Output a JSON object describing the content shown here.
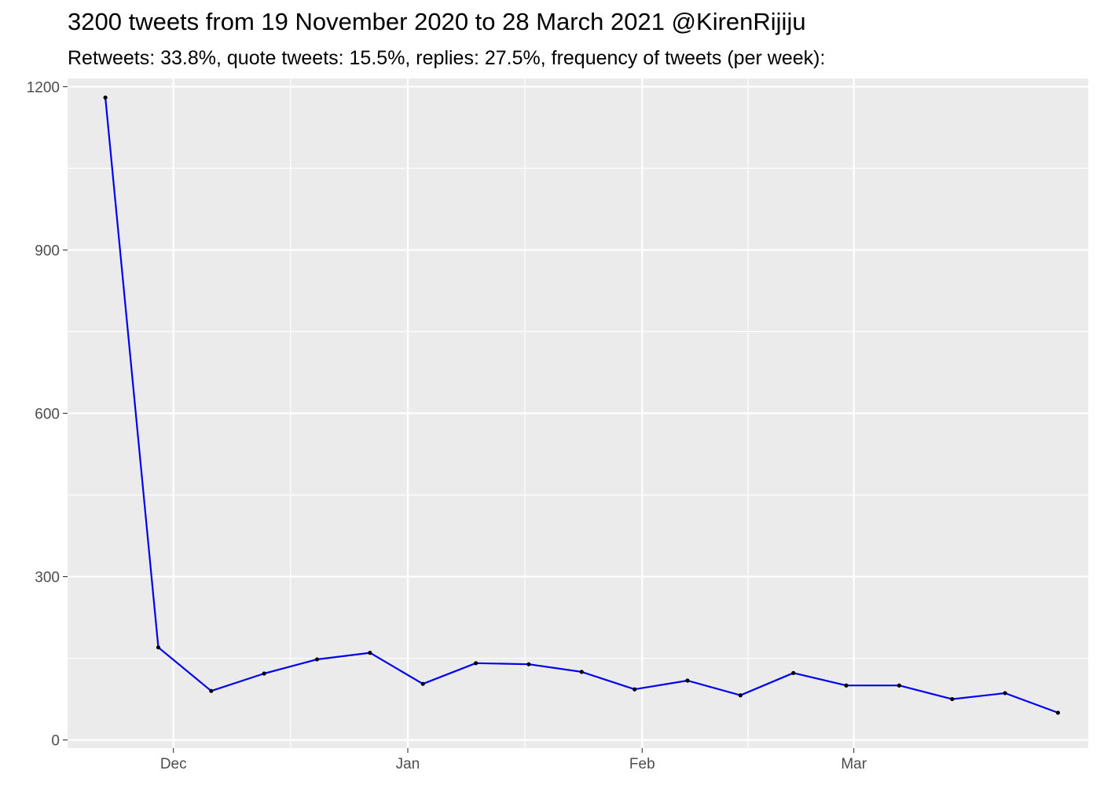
{
  "chart_data": {
    "type": "line",
    "title": "3200 tweets from 19 November 2020 to 28 March 2021 @KirenRijiju",
    "subtitle": "Retweets: 33.8%, quote tweets: 15.5%, replies: 27.5%, frequency of tweets (per week):",
    "xlabel": "",
    "ylabel": "",
    "x_tick_labels": [
      "Dec",
      "Jan",
      "Feb",
      "Mar"
    ],
    "y_ticks": [
      0,
      300,
      600,
      900,
      1200
    ],
    "y_tick_labels": [
      "0",
      "300",
      "600",
      "900",
      "1200"
    ],
    "ylim": [
      -15,
      1215
    ],
    "xlim": [
      "2020-11-17",
      "2021-04-01"
    ],
    "grid": true,
    "panel_background": "#ebebeb",
    "line_color": "#0000ee",
    "point_color": "#000000",
    "series": [
      {
        "x": [
          "2020-11-22",
          "2020-11-29",
          "2020-12-06",
          "2020-12-13",
          "2020-12-20",
          "2020-12-27",
          "2021-01-03",
          "2021-01-10",
          "2021-01-17",
          "2021-01-24",
          "2021-01-31",
          "2021-02-07",
          "2021-02-14",
          "2021-02-21",
          "2021-02-28",
          "2021-03-07",
          "2021-03-14",
          "2021-03-21",
          "2021-03-28"
        ],
        "values": [
          1180,
          170,
          90,
          122,
          148,
          160,
          103,
          141,
          139,
          125,
          93,
          109,
          82,
          123,
          100,
          100,
          75,
          86,
          50
        ]
      }
    ]
  }
}
